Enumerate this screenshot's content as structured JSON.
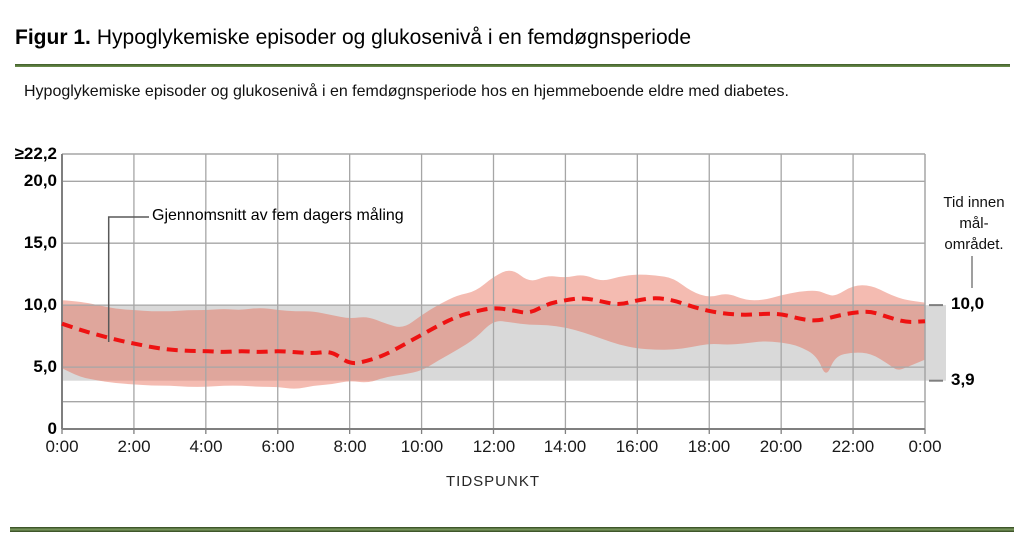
{
  "figure": {
    "title_prefix": "Figur 1.",
    "title_rest": "Hypoglykemiske episoder og glukosenivå i en femdøgnsperiode",
    "subtitle": "Hypoglykemiske episoder og glukosenivå i en femdøgnsperiode hos en hjemmeboende eldre med diabetes."
  },
  "chart_data": {
    "type": "line",
    "title": "",
    "xlabel": "TIDSPUNKT",
    "ylabel": "",
    "grid": true,
    "gridline_color": "#a6a6a6",
    "axis_color": "#7f7f7f",
    "x_axis": {
      "range_hours": [
        0,
        24
      ],
      "tick_interval_hours": 2,
      "ticks": [
        {
          "t": 0,
          "label": "0:00"
        },
        {
          "t": 2,
          "label": "2:00"
        },
        {
          "t": 4,
          "label": "4:00"
        },
        {
          "t": 6,
          "label": "6:00"
        },
        {
          "t": 8,
          "label": "8:00"
        },
        {
          "t": 10,
          "label": "10:00"
        },
        {
          "t": 12,
          "label": "12:00"
        },
        {
          "t": 14,
          "label": "14:00"
        },
        {
          "t": 16,
          "label": "16:00"
        },
        {
          "t": 18,
          "label": "18:00"
        },
        {
          "t": 20,
          "label": "20:00"
        },
        {
          "t": 22,
          "label": "22:00"
        },
        {
          "t": 24,
          "label": "0:00"
        }
      ]
    },
    "y_axis": {
      "range": [
        0,
        22.2
      ],
      "ticks": [
        {
          "v": 22.2,
          "label": "≥22,2"
        },
        {
          "v": 20,
          "label": "20,0"
        },
        {
          "v": 15,
          "label": "15,0"
        },
        {
          "v": 10,
          "label": "10,0"
        },
        {
          "v": 5,
          "label": "5,0"
        },
        {
          "v": 0,
          "label": "0"
        }
      ],
      "extra_gridline_values": [
        2.2
      ]
    },
    "target_band": {
      "low": 3.9,
      "high": 10.0,
      "color": "#d9d9d9",
      "right_title_lines": [
        "Tid innen",
        "mål-",
        "området."
      ],
      "right_labels": [
        {
          "v": 10.0,
          "label": "10,0"
        },
        {
          "v": 3.9,
          "label": "3,9"
        }
      ]
    },
    "annotation": {
      "text": "Gjennomsnitt av fem dagers måling",
      "points_to_hour": 1.3
    },
    "mean_series": {
      "label": "Gjennomsnitt av fem dagers måling",
      "style": "dashed",
      "color": "#ee1212",
      "x_hours": [
        0,
        0.5,
        1,
        1.5,
        2,
        2.5,
        3,
        3.5,
        4,
        4.5,
        5,
        5.5,
        6,
        6.5,
        7,
        7.5,
        8,
        8.5,
        9,
        9.5,
        10,
        10.5,
        11,
        11.5,
        12,
        12.5,
        13,
        13.5,
        14,
        14.5,
        15,
        15.5,
        16,
        16.5,
        17,
        17.5,
        18,
        18.5,
        19,
        19.5,
        20,
        20.5,
        21,
        21.5,
        22,
        22.5,
        23,
        23.5,
        24
      ],
      "values": [
        8.5,
        8.0,
        7.6,
        7.2,
        6.9,
        6.6,
        6.4,
        6.3,
        6.3,
        6.2,
        6.3,
        6.2,
        6.3,
        6.2,
        6.1,
        6.3,
        5.2,
        5.5,
        6.0,
        6.8,
        7.6,
        8.4,
        9.1,
        9.5,
        9.8,
        9.6,
        9.3,
        10.1,
        10.4,
        10.6,
        10.3,
        10.0,
        10.4,
        10.6,
        10.4,
        9.9,
        9.5,
        9.3,
        9.2,
        9.3,
        9.3,
        8.9,
        8.7,
        9.1,
        9.4,
        9.5,
        9.0,
        8.6,
        8.7
      ]
    },
    "range_band": {
      "color": "rgba(231,104,82,0.45)",
      "x_hours": [
        0,
        0.5,
        1,
        1.5,
        2,
        2.5,
        3,
        3.5,
        4,
        4.5,
        5,
        5.5,
        6,
        6.5,
        7,
        7.5,
        8,
        8.5,
        9,
        9.5,
        10,
        10.5,
        11,
        11.5,
        12,
        12.5,
        13,
        13.5,
        14,
        14.5,
        15,
        15.5,
        16,
        16.5,
        17,
        17.5,
        18,
        18.5,
        19,
        19.5,
        20,
        20.5,
        21,
        21.25,
        21.5,
        22,
        22.5,
        23,
        23.25,
        23.5,
        24
      ],
      "upper": [
        10.4,
        10.3,
        10.0,
        9.7,
        9.6,
        9.5,
        9.5,
        9.6,
        9.6,
        9.7,
        9.6,
        9.8,
        9.6,
        9.5,
        9.5,
        9.2,
        8.9,
        9.1,
        8.5,
        8.1,
        9.2,
        10.1,
        10.8,
        11.1,
        12.3,
        13.0,
        11.8,
        12.4,
        12.2,
        12.5,
        11.9,
        12.3,
        12.5,
        12.4,
        12.2,
        11.1,
        10.6,
        11.0,
        10.4,
        10.4,
        10.8,
        11.1,
        11.2,
        10.9,
        10.7,
        11.6,
        11.6,
        10.9,
        10.6,
        10.4,
        10.2
      ],
      "lower": [
        4.9,
        4.2,
        3.9,
        3.7,
        3.6,
        3.5,
        3.5,
        3.4,
        3.4,
        3.5,
        3.5,
        3.4,
        3.4,
        3.2,
        3.5,
        3.6,
        3.9,
        3.7,
        4.2,
        4.4,
        4.7,
        5.6,
        6.4,
        7.3,
        8.8,
        8.6,
        8.4,
        8.4,
        8.2,
        7.8,
        7.3,
        6.8,
        6.5,
        6.4,
        6.4,
        6.6,
        6.9,
        6.8,
        6.9,
        7.1,
        7.0,
        6.7,
        5.9,
        4.1,
        5.9,
        6.2,
        6.1,
        5.2,
        4.7,
        5.0,
        5.6
      ]
    },
    "accent_green": "#4f7434"
  }
}
